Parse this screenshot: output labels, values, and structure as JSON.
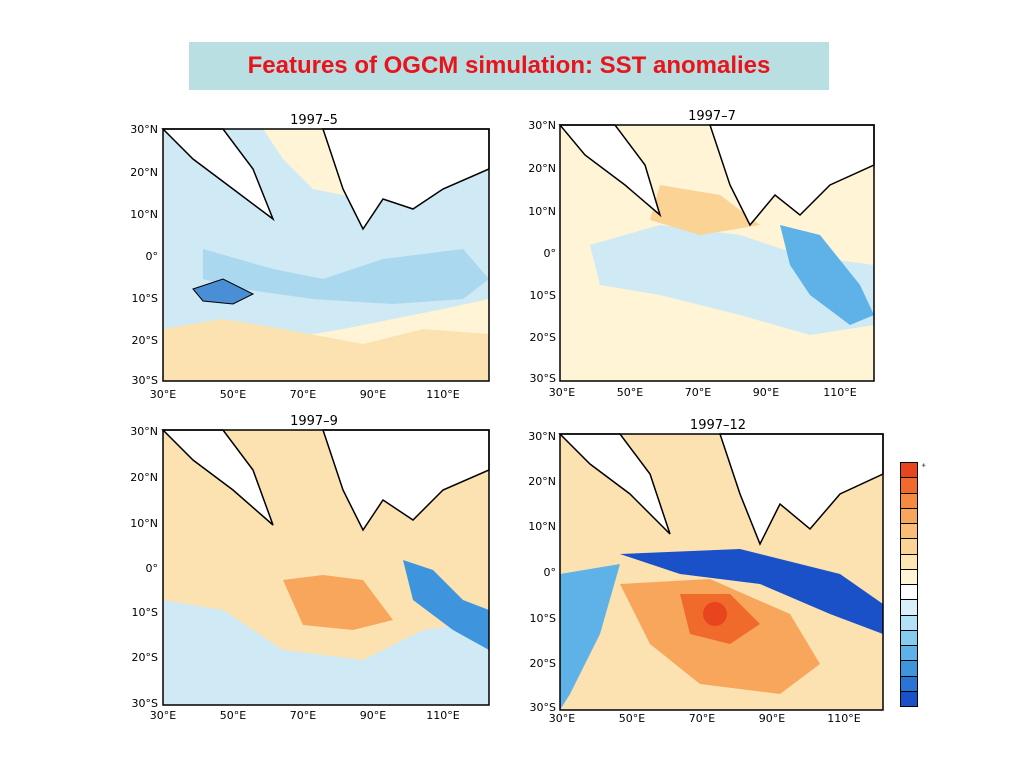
{
  "title": "Features of OGCM simulation: SST anomalies",
  "panels": [
    {
      "label": "1997–5",
      "id": "may"
    },
    {
      "label": "1997–7",
      "id": "jul"
    },
    {
      "label": "1997–9",
      "id": "sep"
    },
    {
      "label": "1997–12",
      "id": "dec"
    }
  ],
  "axes": {
    "lat_labels": [
      "30°N",
      "20°N",
      "10°N",
      "0°",
      "10°S",
      "20°S",
      "30°S"
    ],
    "lon_labels": [
      "30°E",
      "50°E",
      "70°E",
      "90°E",
      "110°E"
    ]
  },
  "legend": {
    "colors": [
      "#e8441e",
      "#f06a2c",
      "#f58b43",
      "#f7a65c",
      "#f9bd78",
      "#fbd394",
      "#fde6b3",
      "#fff4d6",
      "#ffffff",
      "#d9f0fb",
      "#b3e1f7",
      "#86cbf0",
      "#5eb2e8",
      "#3e95de",
      "#2a74d4",
      "#1a50c8"
    ],
    "labels": [
      "+",
      "",
      "",
      "",
      "",
      "",
      "",
      "",
      "",
      "",
      "",
      "",
      "",
      "",
      "",
      ""
    ]
  },
  "colors": {
    "title_text": "#e8141b",
    "title_bg": "#b9dfe3",
    "warm": "#f7d9a3",
    "cool": "#bfe3f2",
    "hot": "#e8641e",
    "cold": "#3b86d6"
  }
}
